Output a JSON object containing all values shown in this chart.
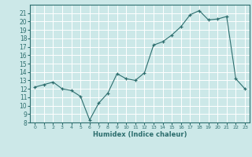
{
  "x": [
    0,
    1,
    2,
    3,
    4,
    5,
    6,
    7,
    8,
    9,
    10,
    11,
    12,
    13,
    14,
    15,
    16,
    17,
    18,
    19,
    20,
    21,
    22,
    23
  ],
  "y": [
    12.2,
    12.5,
    12.8,
    12.0,
    11.8,
    11.1,
    8.3,
    10.3,
    11.5,
    13.8,
    13.2,
    13.0,
    13.9,
    17.2,
    17.6,
    18.4,
    19.4,
    20.8,
    21.3,
    20.2,
    20.3,
    20.6,
    13.2,
    12.0
  ],
  "xlabel": "Humidex (Indice chaleur)",
  "xlim": [
    -0.5,
    23.5
  ],
  "ylim": [
    8,
    22
  ],
  "xticks": [
    0,
    1,
    2,
    3,
    4,
    5,
    6,
    7,
    8,
    9,
    10,
    11,
    12,
    13,
    14,
    15,
    16,
    17,
    18,
    19,
    20,
    21,
    22,
    23
  ],
  "yticks": [
    8,
    9,
    10,
    11,
    12,
    13,
    14,
    15,
    16,
    17,
    18,
    19,
    20,
    21
  ],
  "line_color": "#2d6e6e",
  "bg_color": "#cce8e8",
  "grid_color": "#ffffff"
}
